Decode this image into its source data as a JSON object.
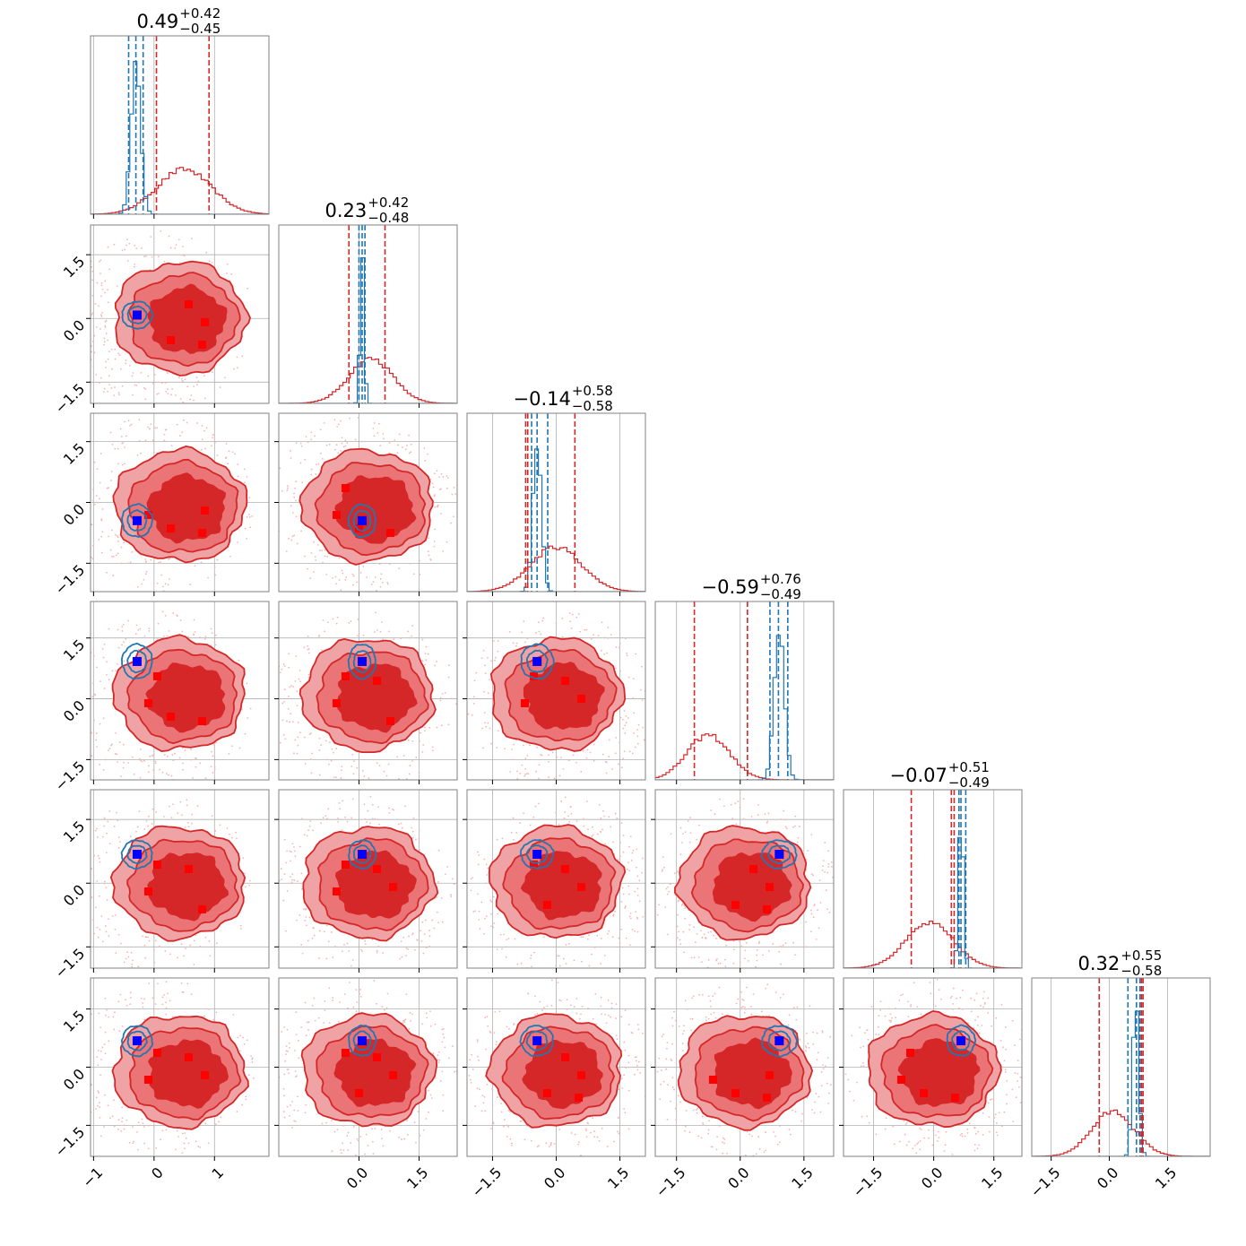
{
  "chart_data": {
    "type": "corner",
    "n_params": 6,
    "series": [
      {
        "name": "",
        "color": "#d62728"
      },
      {
        "name": "",
        "color": "#1f77b4"
      }
    ],
    "titles": [
      {
        "median": "0.49",
        "plus": "+0.42",
        "minus": "−0.45"
      },
      {
        "median": "0.23",
        "plus": "+0.42",
        "minus": "−0.48"
      },
      {
        "median": "−0.14",
        "plus": "+0.58",
        "minus": "−0.58"
      },
      {
        "median": "−0.59",
        "plus": "+0.76",
        "minus": "−0.49"
      },
      {
        "median": "−0.07",
        "plus": "+0.51",
        "minus": "−0.49"
      },
      {
        "median": "0.32",
        "plus": "+0.55",
        "minus": "−0.58"
      }
    ],
    "ranges": [
      [
        -1.05,
        1.9
      ],
      [
        -2.0,
        2.45
      ],
      [
        -2.1,
        2.1
      ],
      [
        -2.0,
        2.2
      ],
      [
        -2.25,
        2.2
      ],
      [
        -2.0,
        2.6
      ]
    ],
    "y_ranges": [
      [
        -2.0,
        2.2
      ],
      [
        -2.2,
        2.2
      ],
      [
        -2.0,
        2.4
      ],
      [
        -2.0,
        2.2
      ],
      [
        -2.3,
        2.3
      ]
    ],
    "x_ticks": [
      {
        "values": [
          -1,
          0,
          1
        ],
        "labels": [
          "−1",
          "0",
          "1"
        ]
      },
      {
        "values": [
          0.0,
          1.5
        ],
        "labels": [
          "0.0",
          "1.5"
        ]
      },
      {
        "values": [
          -1.5,
          0.0,
          1.5
        ],
        "labels": [
          "−1.5",
          "0.0",
          "1.5"
        ]
      },
      {
        "values": [
          -1.5,
          0.0,
          1.5
        ],
        "labels": [
          "−1.5",
          "0.0",
          "1.5"
        ]
      },
      {
        "values": [
          -1.5,
          0.0,
          1.5
        ],
        "labels": [
          "−1.5",
          "0.0",
          "1.5"
        ]
      },
      {
        "values": [
          -1.5,
          0.0,
          1.5
        ],
        "labels": [
          "−1.5",
          "0.0",
          "1.5"
        ]
      }
    ],
    "y_ticks": {
      "values": [
        -1.5,
        0.0,
        1.5
      ],
      "labels": [
        "−1.5",
        "0.0",
        "1.5"
      ]
    },
    "red_quantiles": [
      [
        0.04,
        0.91
      ],
      [
        -0.25,
        0.65
      ],
      [
        -0.72,
        0.44
      ],
      [
        -1.08,
        0.17
      ],
      [
        -0.56,
        0.44
      ],
      [
        -0.26,
        0.87
      ]
    ],
    "red_median_line": [
      null,
      null,
      -0.67,
      null,
      0.51,
      0.83
    ],
    "blue_quantiles": [
      [
        -0.42,
        -0.3,
        -0.18
      ],
      [
        0.0,
        0.08,
        0.15
      ],
      [
        -0.58,
        -0.45,
        -0.2
      ],
      [
        0.7,
        0.9,
        1.12
      ],
      [
        0.63,
        0.68,
        0.8
      ],
      [
        0.48,
        0.7,
        0.79
      ]
    ],
    "red_marginal_peak": [
      0.5,
      0.3,
      0.0,
      -0.75,
      -0.1,
      0.1
    ],
    "red_marginal_width": [
      0.45,
      0.55,
      0.6,
      0.5,
      0.6,
      0.55
    ],
    "blue_marginal_peak": [
      -0.3,
      0.08,
      -0.45,
      0.92,
      0.68,
      0.68
    ],
    "blue_marginal_width": [
      0.08,
      0.05,
      0.1,
      0.12,
      0.06,
      0.08
    ],
    "injection": [
      -0.28,
      0.08,
      -0.45,
      0.92,
      0.68,
      0.68
    ],
    "red_clusters": [
      [
        0.77,
        0.07,
        0.58,
        0.13,
        0.85,
        0.12,
        0.11
      ],
      [
        0.6,
        0.1,
        0.28,
        0.37,
        0.72,
        0.48,
        0.08
      ],
      [
        0.48,
        0.2,
        0.35,
        0.08,
        0.47,
        0.42,
        0.08
      ],
      [
        0.68,
        0.02,
        0.37,
        0.07,
        0.33,
        0.73,
        0.19
      ],
      [
        0.58,
        0.55,
        0.58,
        0.42,
        0.58,
        0.28,
        0.68
      ]
    ],
    "blue_contour_offsets": [
      0.05,
      0.1
    ]
  }
}
